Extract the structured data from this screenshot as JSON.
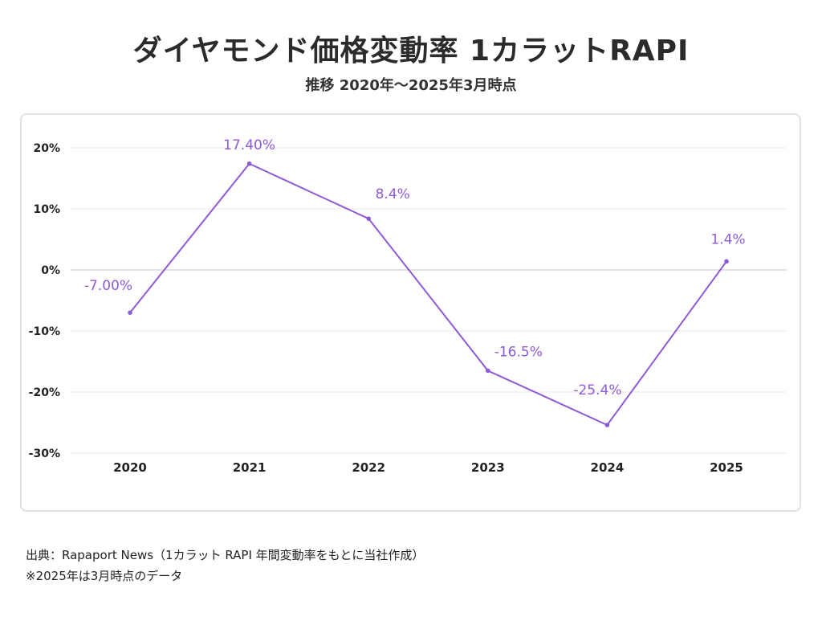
{
  "header": {
    "title": "ダイヤモンド価格変動率 1カラットRAPI",
    "subtitle": "推移 2020年〜2025年3月時点"
  },
  "chart_data": {
    "type": "line",
    "categories": [
      "2020",
      "2021",
      "2022",
      "2023",
      "2024",
      "2025"
    ],
    "values": [
      -7.0,
      17.4,
      8.4,
      -16.5,
      -25.4,
      1.4
    ],
    "data_labels": [
      "-7.00%",
      "17.40%",
      "8.4%",
      "-16.5%",
      "-25.4%",
      "1.4%"
    ],
    "yticks": [
      "20%",
      "10%",
      "0%",
      "-10%",
      "-20%",
      "-30%"
    ],
    "ytick_values": [
      20,
      10,
      0,
      -10,
      -20,
      -30
    ],
    "ylim": [
      -30,
      20
    ],
    "grid": true,
    "line_color": "#8e5bd6"
  },
  "footer": {
    "source": "出典：Rapaport News（1カラット RAPI 年間変動率をもとに当社作成）",
    "note": "※2025年は3月時点のデータ"
  }
}
